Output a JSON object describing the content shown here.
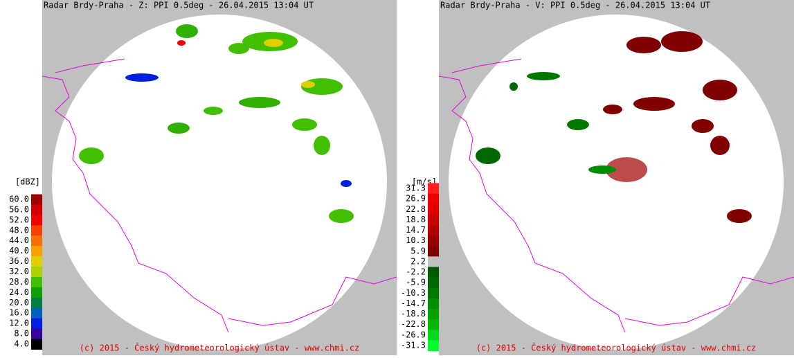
{
  "panels": [
    {
      "title": "Radar Brdy-Praha - Z: PPI  0.5deg - 26.04.2015 13:04 UT",
      "copyright": "(c) 2015 - Český hydrometeorologický ústav - www.chmi.cz",
      "legend": {
        "unit": "[dBZ]",
        "items": [
          {
            "label": "60.0",
            "color": "#a00000"
          },
          {
            "label": "56.0",
            "color": "#d00000"
          },
          {
            "label": "52.0",
            "color": "#f00000"
          },
          {
            "label": "48.0",
            "color": "#f84000"
          },
          {
            "label": "44.0",
            "color": "#f87000"
          },
          {
            "label": "40.0",
            "color": "#f8a000"
          },
          {
            "label": "36.0",
            "color": "#e0d000"
          },
          {
            "label": "32.0",
            "color": "#b0d000"
          },
          {
            "label": "28.0",
            "color": "#40c000"
          },
          {
            "label": "24.0",
            "color": "#10a000"
          },
          {
            "label": "20.0",
            "color": "#008040"
          },
          {
            "label": "16.0",
            "color": "#0060c0"
          },
          {
            "label": "12.0",
            "color": "#0020e0"
          },
          {
            "label": "8.0",
            "color": "#3800a0"
          },
          {
            "label": "4.0",
            "color": "#000000"
          }
        ]
      }
    },
    {
      "title": "Radar Brdy-Praha - V: PPI  0.5deg - 26.04.2015 13:04 UT",
      "copyright": "(c) 2015 - Český hydrometeorologický ústav - www.chmi.cz",
      "legend": {
        "unit": "[m/s]",
        "items": [
          {
            "label": "31.3",
            "color": "#ff2020"
          },
          {
            "label": "26.9",
            "color": "#f00000"
          },
          {
            "label": "22.8",
            "color": "#e00000"
          },
          {
            "label": "18.8",
            "color": "#c80000"
          },
          {
            "label": "14.7",
            "color": "#b00000"
          },
          {
            "label": "10.3",
            "color": "#980000"
          },
          {
            "label": "5.9",
            "color": "#800000"
          },
          {
            "label": "2.2",
            "color": "#c0c0c0"
          },
          {
            "label": "-2.2",
            "color": "#005800"
          },
          {
            "label": "-5.9",
            "color": "#006800"
          },
          {
            "label": "-10.3",
            "color": "#007800"
          },
          {
            "label": "-14.7",
            "color": "#008c00"
          },
          {
            "label": "-18.8",
            "color": "#00a000"
          },
          {
            "label": "-22.8",
            "color": "#00b800"
          },
          {
            "label": "-26.9",
            "color": "#00d820"
          },
          {
            "label": "-31.3",
            "color": "#00ff30"
          }
        ]
      }
    }
  ]
}
